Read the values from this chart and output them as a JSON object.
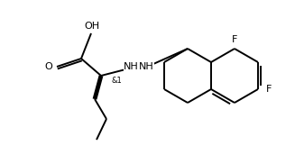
{
  "bg_color": "#ffffff",
  "line_color": "#000000",
  "line_width": 1.4,
  "font_size_label": 8.0,
  "font_size_stereo": 6.0,
  "fig_w": 3.27,
  "fig_h": 1.72,
  "dpi": 100,
  "xlim": [
    0,
    327
  ],
  "ylim": [
    0,
    172
  ],
  "oh_label": "OH",
  "o_label": "O",
  "nh_label": "NH",
  "f1_label": "F",
  "f2_label": "F",
  "stereo_label": "&1"
}
